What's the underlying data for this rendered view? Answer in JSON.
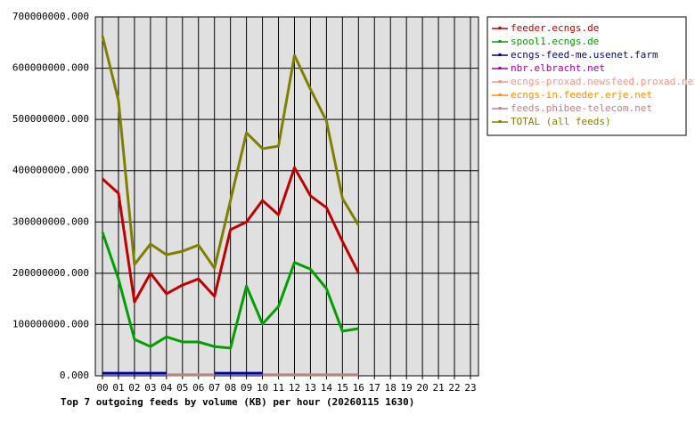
{
  "chart_data": {
    "type": "line",
    "title": "Top 7 outgoing feeds by volume (KB) per hour (20260115 1630)",
    "categories": [
      "00",
      "01",
      "02",
      "03",
      "04",
      "05",
      "06",
      "07",
      "08",
      "09",
      "10",
      "11",
      "12",
      "13",
      "14",
      "15",
      "16",
      "17",
      "18",
      "19",
      "20",
      "21",
      "22",
      "23"
    ],
    "ylim": [
      0,
      700000000
    ],
    "yticks": [
      {
        "value": 0,
        "label": "0.000"
      },
      {
        "value": 100000000,
        "label": "100000000.000"
      },
      {
        "value": 200000000,
        "label": "200000000.000"
      },
      {
        "value": 300000000,
        "label": "300000000.000"
      },
      {
        "value": 400000000,
        "label": "400000000.000"
      },
      {
        "value": 500000000,
        "label": "500000000.000"
      },
      {
        "value": 600000000,
        "label": "600000000.000"
      },
      {
        "value": 700000000,
        "label": "700000000.000"
      }
    ],
    "grid": true,
    "legend": "right",
    "series": [
      {
        "name": "feeder.ecngs.de",
        "color": "#c00000",
        "values": [
          384000000,
          356000000,
          144000000,
          200000000,
          160000000,
          177000000,
          189000000,
          155000000,
          285000000,
          300000000,
          342000000,
          314000000,
          406000000,
          351000000,
          328000000,
          262000000,
          201000000,
          null,
          null,
          null,
          null,
          null,
          null,
          null
        ]
      },
      {
        "name": "spool1.ecngs.de",
        "color": "#00a000",
        "values": [
          280000000,
          189000000,
          71000000,
          57000000,
          76000000,
          66000000,
          66000000,
          57000000,
          54000000,
          175000000,
          101000000,
          135000000,
          221000000,
          208000000,
          170000000,
          87000000,
          92000000,
          null,
          null,
          null,
          null,
          null,
          null,
          null
        ]
      },
      {
        "name": "ecngs-feed-me.usenet.farm",
        "color": "#0000a0",
        "values": [
          5000000,
          5000000,
          5000000,
          5000000,
          5000000,
          null,
          null,
          5000000,
          5000000,
          5000000,
          5000000,
          null,
          null,
          null,
          null,
          null,
          null,
          null,
          null,
          null,
          null,
          null,
          null,
          null
        ]
      },
      {
        "name": "nbr.elbracht.net",
        "color": "#a000a0",
        "values": [
          null,
          null,
          null,
          null,
          null,
          null,
          null,
          null,
          null,
          null,
          null,
          null,
          null,
          null,
          null,
          null,
          null,
          null,
          null,
          null,
          null,
          null,
          null,
          null
        ]
      },
      {
        "name": "ecngs-proxad.newsfeed.proxad.net",
        "color": "#ff9080",
        "values": [
          null,
          null,
          null,
          null,
          null,
          null,
          null,
          null,
          null,
          null,
          null,
          null,
          null,
          null,
          null,
          null,
          null,
          null,
          null,
          null,
          null,
          null,
          null,
          null
        ]
      },
      {
        "name": "ecngs-in.feeder.erje.net",
        "color": "#ff8c00",
        "values": [
          null,
          null,
          null,
          null,
          null,
          null,
          null,
          null,
          null,
          null,
          null,
          null,
          null,
          null,
          null,
          null,
          null,
          null,
          null,
          null,
          null,
          null,
          null,
          null
        ]
      },
      {
        "name": "feeds.phibee-telecom.net",
        "color": "#c08080",
        "values": [
          null,
          null,
          null,
          null,
          2000000,
          2000000,
          2000000,
          2000000,
          null,
          null,
          2000000,
          2000000,
          2000000,
          2000000,
          2000000,
          2000000,
          2000000,
          null,
          null,
          null,
          null,
          null,
          null,
          null
        ]
      },
      {
        "name": "TOTAL (all feeds)",
        "color": "#808000",
        "values": [
          663000000,
          537000000,
          217000000,
          257000000,
          236000000,
          243000000,
          255000000,
          210000000,
          342000000,
          474000000,
          443000000,
          448000000,
          625000000,
          559000000,
          497000000,
          346000000,
          294000000,
          null,
          null,
          null,
          null,
          null,
          null,
          null
        ]
      }
    ]
  }
}
